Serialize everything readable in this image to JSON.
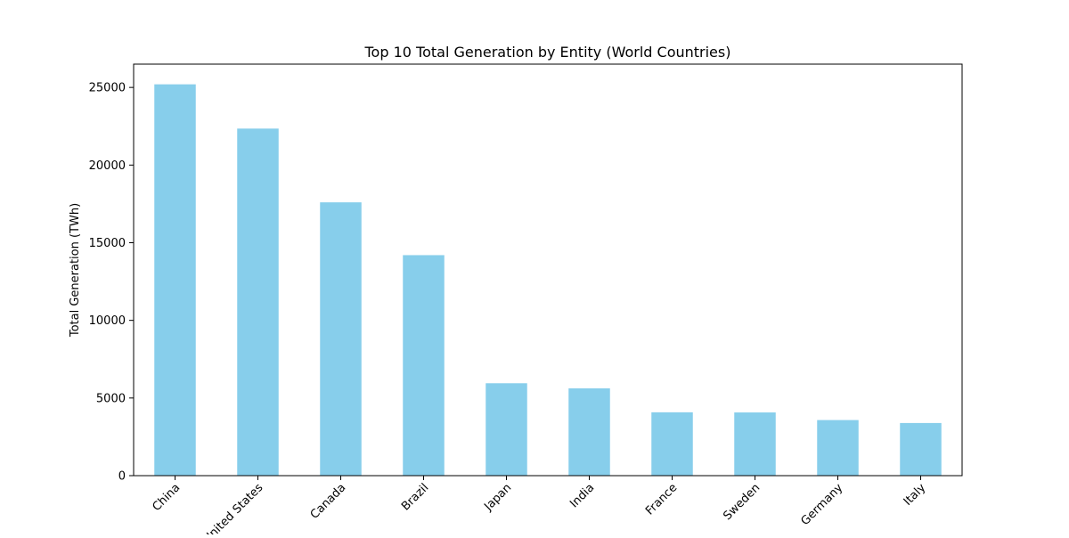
{
  "chart_data": {
    "type": "bar",
    "title": "Top 10 Total Generation by Entity (World Countries)",
    "xlabel": "",
    "ylabel": "Total Generation (TWh)",
    "categories": [
      "China",
      "United States",
      "Canada",
      "Brazil",
      "Japan",
      "India",
      "France",
      "Sweden",
      "Germany",
      "Italy"
    ],
    "values": [
      25200,
      22350,
      17600,
      14200,
      5950,
      5620,
      4080,
      4070,
      3580,
      3390
    ],
    "ylim": [
      0,
      26500
    ],
    "yticks": [
      0,
      5000,
      10000,
      15000,
      20000,
      25000
    ],
    "ytick_labels": [
      "0",
      "5000",
      "10000",
      "15000",
      "20000",
      "25000"
    ],
    "bar_color": "#87ceeb",
    "grid": false,
    "legend": "none"
  }
}
